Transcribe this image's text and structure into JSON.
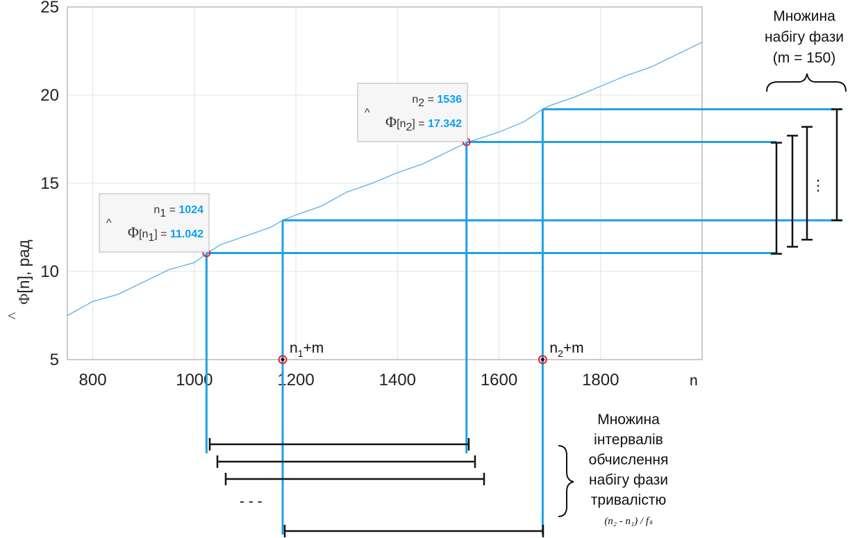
{
  "chart_data": {
    "type": "line",
    "xlabel": "n",
    "ylabel_fn": "Φ",
    "ylabel_arg": "[n]",
    "ylabel_unit": ", рад",
    "xlim": [
      750,
      2000
    ],
    "ylim": [
      5,
      25
    ],
    "xticks": [
      800,
      1000,
      1200,
      1400,
      1600,
      1800
    ],
    "yticks": [
      5,
      10,
      15,
      20,
      25
    ],
    "grid": true,
    "line_color": "#5aaee8",
    "series": [
      {
        "x": [
          750,
          800,
          850,
          900,
          950,
          1000,
          1024,
          1050,
          1100,
          1150,
          1174,
          1200,
          1250,
          1300,
          1350,
          1400,
          1450,
          1500,
          1536,
          1600,
          1650,
          1686,
          1700,
          1750,
          1800,
          1850,
          1900,
          1950,
          2000
        ],
        "y": [
          7.5,
          8.3,
          8.7,
          9.4,
          10.1,
          10.5,
          11.0,
          11.5,
          12.0,
          12.5,
          12.9,
          13.2,
          13.7,
          14.5,
          15.0,
          15.6,
          16.1,
          16.8,
          17.3,
          17.9,
          18.5,
          19.2,
          19.4,
          19.9,
          20.5,
          21.1,
          21.6,
          22.3,
          23.0
        ]
      }
    ],
    "datatips": [
      {
        "n_label": "n",
        "n_sub": "1",
        "n_value": "1024",
        "phi_label": "Φ",
        "phi_sub": "1",
        "phi_value": "11.042",
        "x": 1024,
        "y": 11.042
      },
      {
        "n_label": "n",
        "n_sub": "2",
        "n_value": "1536",
        "phi_label": "Φ",
        "phi_sub": "2",
        "phi_value": "17.342",
        "x": 1536,
        "y": 17.342
      }
    ],
    "markers": [
      {
        "x": 1174,
        "y": 5,
        "label_main": "n",
        "label_sub": "1",
        "label_tail": "+m"
      },
      {
        "x": 1686,
        "y": 5,
        "label_main": "n",
        "label_sub": "2",
        "label_tail": "+m"
      }
    ],
    "construction_color": "#1ea0e6",
    "bracket_color": "#111111",
    "phase_set_caption": [
      "Множина",
      "набігу фази",
      "(m = 150)"
    ],
    "interval_set_caption": [
      "Множина",
      "інтервалів",
      "обчислення",
      "набігу фази",
      "тривалістю"
    ],
    "interval_formula": "(n₂ - n₁) / fₛ",
    "ellipsis_h": "- - -",
    "ellipsis_v": ":"
  }
}
